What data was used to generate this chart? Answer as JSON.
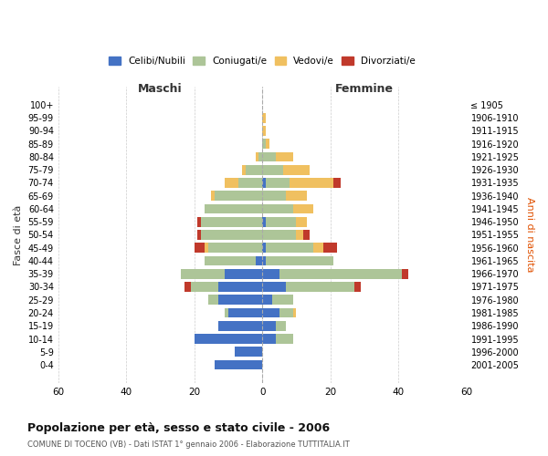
{
  "age_groups": [
    "100+",
    "95-99",
    "90-94",
    "85-89",
    "80-84",
    "75-79",
    "70-74",
    "65-69",
    "60-64",
    "55-59",
    "50-54",
    "45-49",
    "40-44",
    "35-39",
    "30-34",
    "25-29",
    "20-24",
    "15-19",
    "10-14",
    "5-9",
    "0-4"
  ],
  "birth_years": [
    "≤ 1905",
    "1906-1910",
    "1911-1915",
    "1916-1920",
    "1921-1925",
    "1926-1930",
    "1931-1935",
    "1936-1940",
    "1941-1945",
    "1946-1950",
    "1951-1955",
    "1956-1960",
    "1961-1965",
    "1966-1970",
    "1971-1975",
    "1976-1980",
    "1981-1985",
    "1986-1990",
    "1991-1995",
    "1996-2000",
    "2001-2005"
  ],
  "male": {
    "celibi": [
      0,
      0,
      0,
      0,
      0,
      0,
      0,
      0,
      0,
      0,
      0,
      0,
      2,
      11,
      13,
      13,
      10,
      13,
      20,
      8,
      14
    ],
    "coniugati": [
      0,
      0,
      0,
      0,
      1,
      5,
      7,
      14,
      17,
      18,
      18,
      16,
      15,
      13,
      8,
      3,
      1,
      0,
      0,
      0,
      0
    ],
    "vedovi": [
      0,
      0,
      0,
      0,
      1,
      1,
      4,
      1,
      0,
      0,
      0,
      1,
      0,
      0,
      0,
      0,
      0,
      0,
      0,
      0,
      0
    ],
    "divorziati": [
      0,
      0,
      0,
      0,
      0,
      0,
      0,
      0,
      0,
      1,
      1,
      3,
      0,
      0,
      2,
      0,
      0,
      0,
      0,
      0,
      0
    ]
  },
  "female": {
    "nubili": [
      0,
      0,
      0,
      0,
      0,
      0,
      1,
      0,
      0,
      1,
      0,
      1,
      1,
      5,
      7,
      3,
      5,
      4,
      4,
      0,
      0
    ],
    "coniugate": [
      0,
      0,
      0,
      1,
      4,
      6,
      7,
      7,
      9,
      9,
      10,
      14,
      20,
      36,
      20,
      6,
      4,
      3,
      5,
      0,
      0
    ],
    "vedove": [
      0,
      1,
      1,
      1,
      5,
      8,
      13,
      6,
      6,
      3,
      2,
      3,
      0,
      0,
      0,
      0,
      1,
      0,
      0,
      0,
      0
    ],
    "divorziate": [
      0,
      0,
      0,
      0,
      0,
      0,
      2,
      0,
      0,
      0,
      2,
      4,
      0,
      2,
      2,
      0,
      0,
      0,
      0,
      0,
      0
    ]
  },
  "colors": {
    "celibi": "#4472c4",
    "coniugati": "#adc598",
    "vedovi": "#f0c060",
    "divorziati": "#c0392b"
  },
  "xlim": 60,
  "title": "Popolazione per età, sesso e stato civile - 2006",
  "subtitle": "COMUNE DI TOCENO (VB) - Dati ISTAT 1° gennaio 2006 - Elaborazione TUTTITALIA.IT",
  "ylabel_left": "Fasce di età",
  "ylabel_right": "Anni di nascita",
  "xlabel_left": "Maschi",
  "xlabel_right": "Femmine",
  "legend_labels": [
    "Celibi/Nubili",
    "Coniugati/e",
    "Vedovi/e",
    "Divorziati/e"
  ],
  "bg_color": "#ffffff",
  "grid_color": "#cccccc"
}
